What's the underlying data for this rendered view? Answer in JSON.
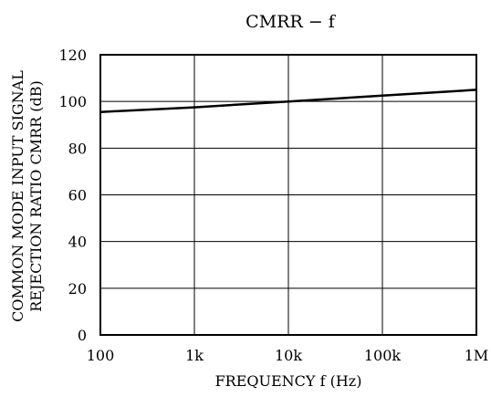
{
  "chart_data": {
    "type": "line",
    "title": "CMRR − f",
    "xlabel": "FREQUENCY f (Hz)",
    "ylabel_line1": "COMMON MODE INPUT SIGNAL",
    "ylabel_line2": "REJECTION RATIO CMRR (dB)",
    "x_scale": "log",
    "xlim": [
      100,
      1000000
    ],
    "ylim": [
      0,
      120
    ],
    "grid": true,
    "x_ticks": [
      {
        "value": 100,
        "label": "100"
      },
      {
        "value": 1000,
        "label": "1k"
      },
      {
        "value": 10000,
        "label": "10k"
      },
      {
        "value": 100000,
        "label": "100k"
      },
      {
        "value": 1000000,
        "label": "1M"
      }
    ],
    "y_ticks": [
      {
        "value": 0,
        "label": "0"
      },
      {
        "value": 20,
        "label": "20"
      },
      {
        "value": 40,
        "label": "40"
      },
      {
        "value": 60,
        "label": "60"
      },
      {
        "value": 80,
        "label": "80"
      },
      {
        "value": 100,
        "label": "100"
      },
      {
        "value": 120,
        "label": "120"
      }
    ],
    "series": [
      {
        "x": [
          100,
          1000,
          10000,
          100000,
          1000000
        ],
        "y": [
          95.5,
          97.5,
          100,
          102.5,
          105
        ]
      }
    ]
  }
}
